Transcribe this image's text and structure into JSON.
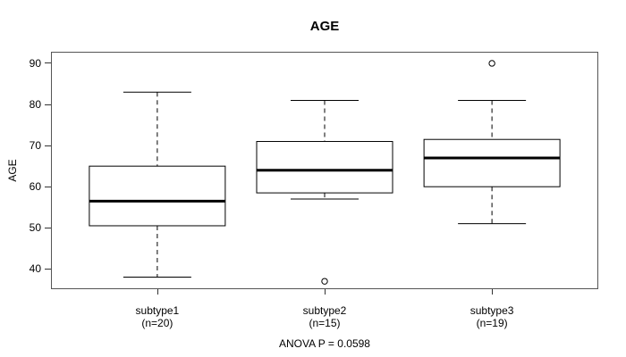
{
  "chart_data": {
    "type": "boxplot",
    "title": "AGE",
    "ylabel": "AGE",
    "xlabel": "",
    "footer": "ANOVA P = 0.0598",
    "yticks": [
      40,
      50,
      60,
      70,
      80,
      90
    ],
    "ylim": [
      35.3,
      92.6
    ],
    "grid": false,
    "legend": "none",
    "whisker_style": "dashed",
    "colors": {
      "line": "#000000",
      "frame": "#555555",
      "background": "#ffffff",
      "box_fill": "#ffffff"
    },
    "groups": [
      {
        "label": "subtype1",
        "sublabel": "(n=20)",
        "n": 20,
        "whisker_low": 38,
        "q1": 50.5,
        "median": 56.5,
        "q3": 65,
        "whisker_high": 83,
        "outliers": []
      },
      {
        "label": "subtype2",
        "sublabel": "(n=15)",
        "n": 15,
        "whisker_low": 57,
        "q1": 58.5,
        "median": 64,
        "q3": 71,
        "whisker_high": 81,
        "outliers": [
          37
        ]
      },
      {
        "label": "subtype3",
        "sublabel": "(n=19)",
        "n": 19,
        "whisker_low": 51,
        "q1": 60,
        "median": 67,
        "q3": 71.5,
        "whisker_high": 81,
        "outliers": [
          90
        ]
      }
    ]
  }
}
